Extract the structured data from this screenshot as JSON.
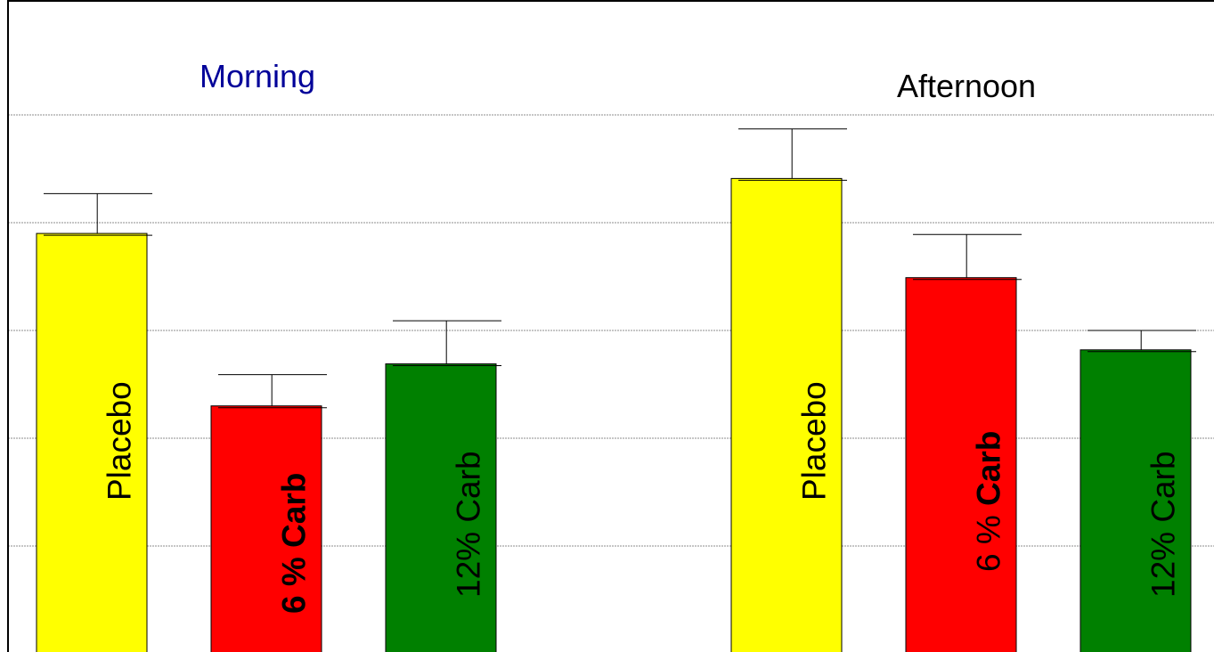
{
  "colors": {
    "placebo": "#ffff00",
    "carb6": "#ff0000",
    "carb12": "#008000",
    "morning_title": "#000099",
    "afternoon_title": "#000000"
  },
  "chart_data": {
    "type": "bar",
    "title": "",
    "xlabel": "",
    "ylabel": "",
    "ylim": [
      0,
      5
    ],
    "grid": true,
    "y_gridlines": [
      1,
      2,
      3,
      4,
      5
    ],
    "groups": [
      {
        "title": "Morning",
        "bars": [
          {
            "label_parts": [
              {
                "text": "Placebo",
                "bold": false
              }
            ],
            "value": 3.9,
            "error": 0.37,
            "series": "placebo"
          },
          {
            "label_parts": [
              {
                "text": "6 % Carb",
                "bold": true
              }
            ],
            "value": 2.3,
            "error": 0.29,
            "series": "carb6"
          },
          {
            "label_parts": [
              {
                "text": "12% Carb",
                "bold": false
              }
            ],
            "value": 2.69,
            "error": 0.4,
            "series": "carb12"
          }
        ]
      },
      {
        "title": "Afternoon",
        "bars": [
          {
            "label_parts": [
              {
                "text": "Placebo",
                "bold": false
              }
            ],
            "value": 4.41,
            "error": 0.46,
            "series": "placebo"
          },
          {
            "label_parts": [
              {
                "text": "6 % ",
                "bold": false
              },
              {
                "text": "Carb",
                "bold": true
              }
            ],
            "value": 3.49,
            "error": 0.4,
            "series": "carb6"
          },
          {
            "label_parts": [
              {
                "text": "12% Carb",
                "bold": false
              }
            ],
            "value": 2.82,
            "error": 0.18,
            "series": "carb12"
          }
        ]
      }
    ]
  }
}
